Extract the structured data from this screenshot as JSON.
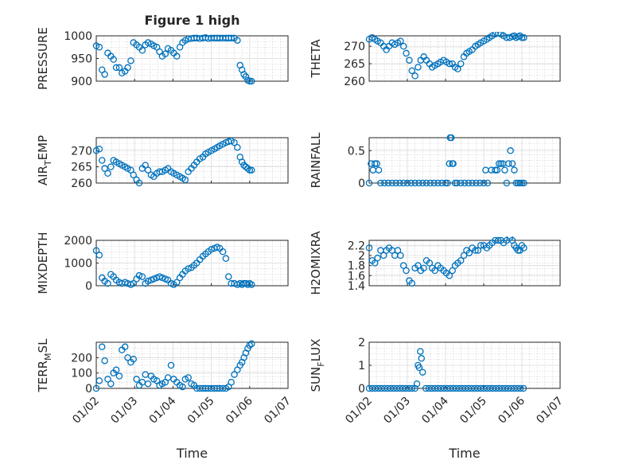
{
  "figure": {
    "title": "Figure 1 high",
    "xlabel": "Time"
  },
  "chart_data": [
    {
      "type": "scatter",
      "title": "Figure 1 high",
      "ylabel": "PRESSURE",
      "ylim": [
        900,
        1000
      ],
      "yticks": [
        900,
        950,
        1000
      ],
      "xlim": [
        0,
        5
      ],
      "xticklabels": [
        "01/02",
        "01/03",
        "01/04",
        "01/05",
        "01/06",
        "01/07"
      ],
      "x": [
        0.0,
        0.08,
        0.15,
        0.22,
        0.3,
        0.38,
        0.45,
        0.52,
        0.6,
        0.67,
        0.75,
        0.82,
        0.9,
        0.97,
        1.05,
        1.12,
        1.2,
        1.28,
        1.35,
        1.43,
        1.5,
        1.58,
        1.65,
        1.72,
        1.8,
        1.87,
        1.95,
        2.02,
        2.1,
        2.18,
        2.25,
        2.32,
        2.4,
        2.48,
        2.55,
        2.62,
        2.7,
        2.78,
        2.85,
        2.92,
        3.0,
        3.08,
        3.15,
        3.22,
        3.3,
        3.38,
        3.45,
        3.52,
        3.6,
        3.68,
        3.75,
        3.8,
        3.85,
        3.9,
        3.95,
        4.0,
        4.05
      ],
      "y": [
        978,
        975,
        925,
        915,
        962,
        955,
        948,
        930,
        930,
        918,
        922,
        930,
        945,
        985,
        980,
        975,
        968,
        980,
        985,
        982,
        978,
        975,
        965,
        955,
        960,
        972,
        968,
        962,
        955,
        975,
        985,
        990,
        993,
        994,
        995,
        995,
        994,
        995,
        996,
        994,
        995,
        995,
        995,
        995,
        995,
        995,
        995,
        995,
        995,
        990,
        935,
        925,
        915,
        910,
        902,
        900,
        900
      ]
    },
    {
      "type": "scatter",
      "ylabel": "THETA",
      "ylim": [
        260,
        273
      ],
      "yticks": [
        260,
        265,
        270
      ],
      "xlim": [
        0,
        5
      ],
      "xticklabels": [
        "01/02",
        "01/03",
        "01/04",
        "01/05",
        "01/06",
        "01/07"
      ],
      "x": [
        0.0,
        0.08,
        0.15,
        0.22,
        0.3,
        0.38,
        0.45,
        0.52,
        0.6,
        0.67,
        0.75,
        0.82,
        0.9,
        0.97,
        1.05,
        1.12,
        1.2,
        1.28,
        1.35,
        1.43,
        1.5,
        1.58,
        1.65,
        1.72,
        1.8,
        1.87,
        1.95,
        2.02,
        2.1,
        2.18,
        2.25,
        2.32,
        2.4,
        2.48,
        2.55,
        2.62,
        2.7,
        2.78,
        2.85,
        2.92,
        3.0,
        3.08,
        3.15,
        3.22,
        3.3,
        3.38,
        3.45,
        3.52,
        3.6,
        3.68,
        3.75,
        3.8,
        3.85,
        3.9,
        3.95,
        4.0,
        4.05
      ],
      "y": [
        272,
        272.5,
        272,
        271.5,
        271,
        270,
        269,
        270,
        271,
        270.5,
        271,
        271.5,
        270,
        268,
        266,
        263,
        261.5,
        264,
        266,
        267,
        266,
        265,
        264,
        264.5,
        265,
        265.5,
        266,
        265.5,
        265,
        265,
        264,
        263.5,
        265,
        267,
        268,
        268.5,
        269,
        270,
        270.5,
        271,
        271.5,
        272,
        272.5,
        273,
        273.5,
        273.8,
        273.5,
        273,
        272.5,
        272.5,
        272.8,
        273,
        272.5,
        272.8,
        273,
        272.5,
        272.5
      ]
    },
    {
      "type": "scatter",
      "ylabel": "AIR_TEMP",
      "ylim": [
        260,
        274
      ],
      "yticks": [
        260,
        265,
        270
      ],
      "xlim": [
        0,
        5
      ],
      "xticklabels": [
        "01/02",
        "01/03",
        "01/04",
        "01/05",
        "01/06",
        "01/07"
      ],
      "x": [
        0.0,
        0.08,
        0.15,
        0.22,
        0.3,
        0.38,
        0.45,
        0.52,
        0.6,
        0.67,
        0.75,
        0.82,
        0.9,
        0.97,
        1.05,
        1.12,
        1.2,
        1.28,
        1.35,
        1.43,
        1.5,
        1.58,
        1.65,
        1.72,
        1.8,
        1.87,
        1.95,
        2.02,
        2.1,
        2.18,
        2.25,
        2.32,
        2.4,
        2.48,
        2.55,
        2.62,
        2.7,
        2.78,
        2.85,
        2.92,
        3.0,
        3.08,
        3.15,
        3.22,
        3.3,
        3.38,
        3.45,
        3.52,
        3.6,
        3.68,
        3.75,
        3.8,
        3.85,
        3.9,
        3.95,
        4.0,
        4.05
      ],
      "y": [
        270,
        270.5,
        267,
        264.5,
        263,
        265,
        267,
        266.5,
        266,
        265.5,
        265,
        264.5,
        264,
        262.5,
        261,
        260,
        264.5,
        265.5,
        264,
        262.5,
        262,
        263,
        263.5,
        263.5,
        264,
        264.5,
        263.5,
        263,
        262.5,
        262,
        261.5,
        261,
        263.5,
        264.5,
        265.5,
        266.5,
        267.5,
        268,
        269,
        269.5,
        270,
        270.5,
        271,
        271.5,
        272,
        272.5,
        272.8,
        273,
        272.5,
        271,
        268,
        266.5,
        265.5,
        265,
        264.5,
        264,
        264
      ]
    },
    {
      "type": "scatter",
      "ylabel": "RAINFALL",
      "ylim": [
        0,
        0.7
      ],
      "yticks": [
        0,
        0.5
      ],
      "xlim": [
        0,
        5
      ],
      "xticklabels": [
        "01/02",
        "01/03",
        "01/04",
        "01/05",
        "01/06",
        "01/07"
      ],
      "x": [
        0.0,
        0.05,
        0.1,
        0.15,
        0.2,
        0.25,
        0.3,
        0.4,
        0.5,
        0.6,
        0.7,
        0.8,
        0.9,
        1.0,
        1.1,
        1.2,
        1.3,
        1.4,
        1.5,
        1.6,
        1.7,
        1.8,
        1.9,
        2.0,
        2.05,
        2.1,
        2.12,
        2.15,
        2.18,
        2.2,
        2.25,
        2.3,
        2.4,
        2.5,
        2.6,
        2.7,
        2.8,
        2.9,
        3.0,
        3.05,
        3.1,
        3.2,
        3.3,
        3.35,
        3.4,
        3.45,
        3.5,
        3.55,
        3.6,
        3.65,
        3.7,
        3.75,
        3.8,
        3.85,
        3.9,
        3.95,
        4.0,
        4.05
      ],
      "y": [
        0,
        0.3,
        0.2,
        0.3,
        0.3,
        0.2,
        0,
        0,
        0,
        0,
        0,
        0,
        0,
        0,
        0,
        0,
        0,
        0,
        0,
        0,
        0,
        0,
        0,
        0,
        0,
        0.3,
        0.7,
        0.7,
        0.3,
        0.3,
        0,
        0,
        0,
        0,
        0,
        0,
        0,
        0,
        0,
        0.2,
        0,
        0.2,
        0.2,
        0.2,
        0.3,
        0.3,
        0.3,
        0.2,
        0,
        0.3,
        0.5,
        0.3,
        0.2,
        0,
        0,
        0,
        0,
        0
      ]
    },
    {
      "type": "scatter",
      "ylabel": "MIXDEPTH",
      "ylim": [
        0,
        2000
      ],
      "yticks": [
        0,
        1000,
        2000
      ],
      "xlim": [
        0,
        5
      ],
      "xticklabels": [
        "01/02",
        "01/03",
        "01/04",
        "01/05",
        "01/06",
        "01/07"
      ],
      "x": [
        0.0,
        0.08,
        0.15,
        0.22,
        0.3,
        0.38,
        0.45,
        0.52,
        0.6,
        0.67,
        0.75,
        0.82,
        0.9,
        0.97,
        1.05,
        1.12,
        1.2,
        1.28,
        1.35,
        1.43,
        1.5,
        1.58,
        1.65,
        1.72,
        1.8,
        1.87,
        1.95,
        2.02,
        2.1,
        2.18,
        2.25,
        2.32,
        2.4,
        2.48,
        2.55,
        2.62,
        2.7,
        2.78,
        2.85,
        2.92,
        3.0,
        3.08,
        3.15,
        3.22,
        3.3,
        3.38,
        3.45,
        3.52,
        3.6,
        3.68,
        3.75,
        3.8,
        3.85,
        3.9,
        3.95,
        4.0,
        4.05
      ],
      "y": [
        1550,
        1350,
        350,
        200,
        100,
        500,
        400,
        250,
        150,
        100,
        150,
        100,
        50,
        100,
        300,
        450,
        400,
        100,
        200,
        250,
        300,
        350,
        400,
        350,
        300,
        250,
        100,
        50,
        150,
        350,
        500,
        650,
        750,
        800,
        900,
        1000,
        1150,
        1300,
        1400,
        1500,
        1600,
        1650,
        1700,
        1650,
        1500,
        1200,
        400,
        100,
        100,
        50,
        100,
        50,
        100,
        100,
        50,
        100,
        50
      ]
    },
    {
      "type": "scatter",
      "ylabel": "H2OMIXRA",
      "ylim": [
        1.4,
        2.3
      ],
      "yticks": [
        1.4,
        1.6,
        1.8,
        2,
        2.2
      ],
      "xlim": [
        0,
        5
      ],
      "xticklabels": [
        "01/02",
        "01/03",
        "01/04",
        "01/05",
        "01/06",
        "01/07"
      ],
      "x": [
        0.0,
        0.08,
        0.15,
        0.22,
        0.3,
        0.38,
        0.45,
        0.52,
        0.6,
        0.67,
        0.75,
        0.82,
        0.9,
        0.97,
        1.05,
        1.12,
        1.2,
        1.28,
        1.35,
        1.43,
        1.5,
        1.58,
        1.65,
        1.72,
        1.8,
        1.87,
        1.95,
        2.02,
        2.1,
        2.18,
        2.25,
        2.32,
        2.4,
        2.48,
        2.55,
        2.62,
        2.7,
        2.78,
        2.85,
        2.92,
        3.0,
        3.08,
        3.15,
        3.22,
        3.3,
        3.38,
        3.45,
        3.52,
        3.6,
        3.68,
        3.75,
        3.8,
        3.85,
        3.9,
        3.95,
        4.0,
        4.05
      ],
      "y": [
        2.15,
        1.9,
        1.85,
        1.95,
        2.1,
        2.0,
        2.1,
        2.15,
        2.1,
        2.0,
        2.1,
        2.0,
        1.8,
        1.7,
        1.5,
        1.45,
        1.75,
        1.8,
        1.7,
        1.75,
        1.9,
        1.85,
        1.75,
        1.7,
        1.8,
        1.75,
        1.7,
        1.65,
        1.6,
        1.7,
        1.8,
        1.85,
        1.9,
        2.0,
        2.1,
        2.05,
        2.15,
        2.1,
        2.1,
        2.2,
        2.2,
        2.15,
        2.2,
        2.25,
        2.3,
        2.3,
        2.3,
        2.25,
        2.3,
        2.35,
        2.3,
        2.2,
        2.15,
        2.1,
        2.1,
        2.2,
        2.15
      ]
    },
    {
      "type": "scatter",
      "ylabel": "TERR_MSL",
      "ylim": [
        0,
        300
      ],
      "yticks": [
        0,
        100,
        200
      ],
      "xlim": [
        0,
        5
      ],
      "xticklabels": [
        "01/02",
        "01/03",
        "01/04",
        "01/05",
        "01/06",
        "01/07"
      ],
      "x": [
        0.0,
        0.08,
        0.15,
        0.22,
        0.3,
        0.38,
        0.45,
        0.52,
        0.6,
        0.67,
        0.75,
        0.82,
        0.9,
        0.97,
        1.05,
        1.12,
        1.2,
        1.28,
        1.35,
        1.43,
        1.5,
        1.58,
        1.65,
        1.72,
        1.8,
        1.87,
        1.95,
        2.02,
        2.1,
        2.18,
        2.25,
        2.32,
        2.4,
        2.48,
        2.55,
        2.62,
        2.7,
        2.78,
        2.85,
        2.92,
        3.0,
        3.08,
        3.15,
        3.22,
        3.3,
        3.38,
        3.45,
        3.52,
        3.6,
        3.68,
        3.75,
        3.8,
        3.85,
        3.9,
        3.95,
        4.0,
        4.05
      ],
      "y": [
        0,
        50,
        270,
        180,
        60,
        30,
        100,
        120,
        80,
        250,
        270,
        200,
        170,
        190,
        60,
        20,
        40,
        90,
        30,
        80,
        60,
        50,
        20,
        30,
        40,
        70,
        150,
        60,
        40,
        20,
        10,
        60,
        70,
        30,
        20,
        0,
        0,
        0,
        0,
        0,
        0,
        0,
        0,
        0,
        0,
        0,
        10,
        40,
        90,
        120,
        150,
        170,
        200,
        230,
        260,
        280,
        290
      ]
    },
    {
      "type": "scatter",
      "ylabel": "SUN_FLUX",
      "ylim": [
        0,
        2
      ],
      "yticks": [
        0,
        1,
        2
      ],
      "xlim": [
        0,
        5
      ],
      "xticklabels": [
        "01/02",
        "01/03",
        "01/04",
        "01/05",
        "01/06",
        "01/07"
      ],
      "x": [
        0.0,
        0.08,
        0.16,
        0.24,
        0.32,
        0.4,
        0.48,
        0.56,
        0.64,
        0.72,
        0.8,
        0.88,
        0.96,
        1.04,
        1.12,
        1.2,
        1.25,
        1.28,
        1.31,
        1.34,
        1.37,
        1.4,
        1.48,
        1.56,
        1.64,
        1.72,
        1.8,
        1.88,
        1.96,
        2.04,
        2.12,
        2.2,
        2.28,
        2.36,
        2.44,
        2.52,
        2.6,
        2.68,
        2.76,
        2.84,
        2.92,
        3.0,
        3.08,
        3.16,
        3.24,
        3.32,
        3.4,
        3.48,
        3.56,
        3.64,
        3.72,
        3.8,
        3.88,
        3.96,
        4.04
      ],
      "y": [
        0,
        0,
        0,
        0,
        0,
        0,
        0,
        0,
        0,
        0,
        0,
        0,
        0,
        0,
        0,
        0,
        0.2,
        1.0,
        0.9,
        1.6,
        1.3,
        0.7,
        0,
        0,
        0,
        0,
        0,
        0,
        0,
        0,
        0,
        0,
        0,
        0,
        0,
        0,
        0,
        0,
        0,
        0,
        0,
        0,
        0,
        0,
        0,
        0,
        0,
        0,
        0,
        0,
        0,
        0,
        0,
        0,
        0
      ]
    }
  ]
}
